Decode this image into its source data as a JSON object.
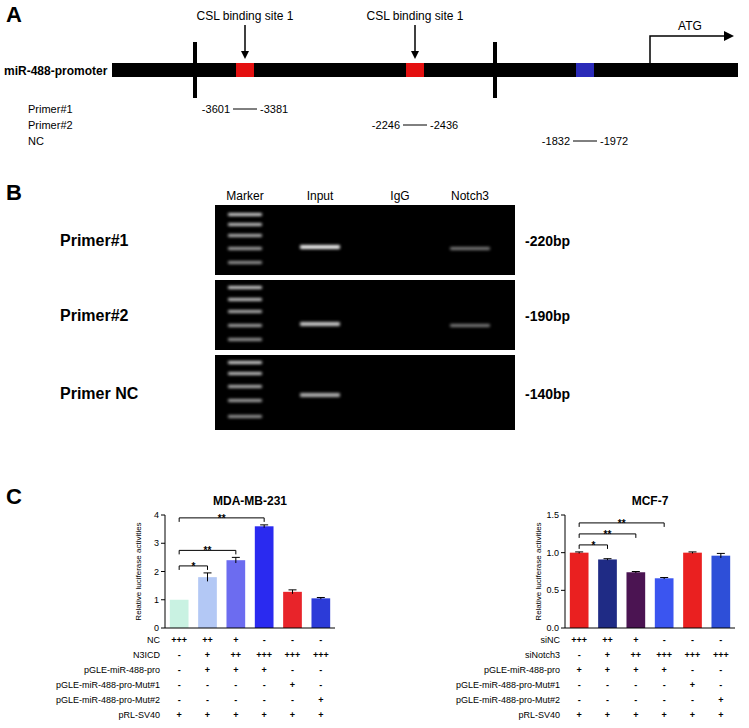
{
  "panel_a": {
    "label": "A",
    "promoter_label": "miR-488-promoter",
    "sites": [
      "CSL binding site 1",
      "CSL binding site 1"
    ],
    "tss_label": "ATG",
    "primers": [
      {
        "name": "Primer#1",
        "start": "-3601",
        "end": "-3381"
      },
      {
        "name": "Primer#2",
        "start": "-2246",
        "end": "-2436"
      },
      {
        "name": "NC",
        "start": "-1832",
        "end": "-1972"
      }
    ]
  },
  "panel_b": {
    "label": "B",
    "lanes": [
      "Marker",
      "Input",
      "IgG",
      "Notch3"
    ],
    "rows": [
      {
        "primer": "Primer#1",
        "size": "-220bp"
      },
      {
        "primer": "Primer#2",
        "size": "-190bp"
      },
      {
        "primer": "Primer NC",
        "size": "-140bp"
      }
    ]
  },
  "panel_c": {
    "label": "C"
  },
  "chart_data": [
    {
      "type": "bar",
      "title": "MDA-MB-231",
      "ylabel": "Relative luciferase activities",
      "categories": [
        null,
        null,
        null,
        null,
        null,
        null
      ],
      "values": [
        1.0,
        1.8,
        2.4,
        3.6,
        1.28,
        1.05
      ],
      "errors": [
        0,
        0.15,
        0.1,
        0.05,
        0.07,
        0.03
      ],
      "colors": [
        "#c9f2e2",
        "#b3c8f5",
        "#6c6cf0",
        "#2a2af0",
        "#e8242a",
        "#2c3bd8"
      ],
      "ylim": [
        0,
        4
      ],
      "yticks": [
        0,
        1,
        2,
        3,
        4
      ],
      "significance": [
        {
          "from": 0,
          "to": 1,
          "label": "*"
        },
        {
          "from": 0,
          "to": 2,
          "label": "**"
        },
        {
          "from": 0,
          "to": 3,
          "label": "**"
        }
      ],
      "conditions": [
        {
          "label": "NC",
          "values": [
            "+++",
            "++",
            "+",
            "-",
            "-",
            "-"
          ]
        },
        {
          "label": "N3ICD",
          "values": [
            "-",
            "+",
            "++",
            "+++",
            "+++",
            "+++"
          ]
        },
        {
          "label": "pGLE-miR-488-pro",
          "values": [
            "-",
            "+",
            "+",
            "+",
            "-",
            "-"
          ]
        },
        {
          "label": "pGLE-miR-488-pro-Mut#1",
          "values": [
            "-",
            "-",
            "-",
            "-",
            "+",
            "-"
          ]
        },
        {
          "label": "pGLE-miR-488-pro-Mut#2",
          "values": [
            "-",
            "-",
            "-",
            "-",
            "-",
            "+"
          ]
        },
        {
          "label": "pRL-SV40",
          "values": [
            "+",
            "+",
            "+",
            "+",
            "+",
            "+"
          ]
        }
      ]
    },
    {
      "type": "bar",
      "title": "MCF-7",
      "ylabel": "Relative luciferase activities",
      "categories": [
        null,
        null,
        null,
        null,
        null,
        null
      ],
      "values": [
        1.0,
        0.91,
        0.74,
        0.66,
        1.0,
        0.96
      ],
      "errors": [
        0.01,
        0.01,
        0.01,
        0.01,
        0.01,
        0.03
      ],
      "colors": [
        "#ea2020",
        "#1f2b85",
        "#4b1452",
        "#3b55f0",
        "#ea2020",
        "#2e4fd8"
      ],
      "ylim": [
        0,
        1.5
      ],
      "yticks": [
        {
          "value": 0,
          "label": "0.0"
        },
        0.5,
        {
          "value": 1,
          "label": "1.0"
        },
        1.5
      ],
      "significance": [
        {
          "from": 0,
          "to": 1,
          "label": "*"
        },
        {
          "from": 0,
          "to": 2,
          "label": "**"
        },
        {
          "from": 0,
          "to": 3,
          "label": "**"
        }
      ],
      "conditions": [
        {
          "label": "siNC",
          "values": [
            "+++",
            "++",
            "+",
            "-",
            "-",
            "-"
          ]
        },
        {
          "label": "siNotch3",
          "values": [
            "-",
            "+",
            "++",
            "+++",
            "+++",
            "+++"
          ]
        },
        {
          "label": "pGLE-miR-488-pro",
          "values": [
            "+",
            "+",
            "+",
            "+",
            "-",
            "-"
          ]
        },
        {
          "label": "pGLE-miR-488-pro-Mut#1",
          "values": [
            "-",
            "-",
            "-",
            "-",
            "+",
            "-"
          ]
        },
        {
          "label": "pGLE-miR-488-pro-Mut#2",
          "values": [
            "-",
            "-",
            "-",
            "-",
            "-",
            "+"
          ]
        },
        {
          "label": "pRL-SV40",
          "values": [
            "+",
            "+",
            "+",
            "+",
            "+",
            "+"
          ]
        }
      ]
    }
  ]
}
